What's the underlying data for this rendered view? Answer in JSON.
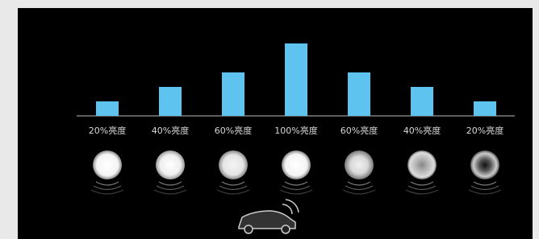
{
  "chart_data": {
    "type": "bar",
    "categories": [
      "20%亮度",
      "40%亮度",
      "60%亮度",
      "100%亮度",
      "60%亮度",
      "40%亮度",
      "20%亮度"
    ],
    "values": [
      20,
      40,
      60,
      100,
      60,
      40,
      20
    ],
    "color": "#5ec3ee"
  }
}
